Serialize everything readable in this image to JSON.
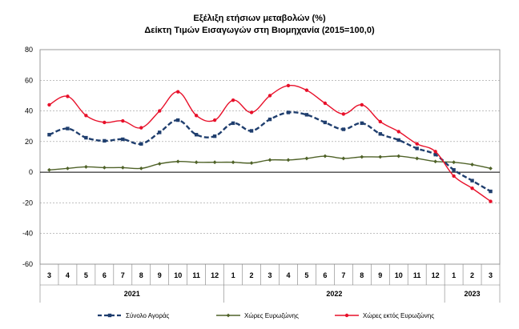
{
  "chart_data": {
    "type": "line",
    "title": "Εξέλιξη ετήσιων μεταβολών (%)",
    "subtitle": "Δείκτη Τιμών Εισαγωγών στη Βιομηχανία (2015=100,0)",
    "categories": [
      "3",
      "4",
      "5",
      "6",
      "7",
      "8",
      "9",
      "10",
      "11",
      "12",
      "1",
      "2",
      "3",
      "4",
      "5",
      "6",
      "7",
      "8",
      "9",
      "10",
      "11",
      "12",
      "1",
      "2",
      "3"
    ],
    "year_groups": [
      {
        "label": "2021",
        "start": 0,
        "end": 9
      },
      {
        "label": "2022",
        "start": 10,
        "end": 21
      },
      {
        "label": "2023",
        "start": 22,
        "end": 24
      }
    ],
    "ylim": [
      -60,
      80
    ],
    "yticks": [
      80,
      60,
      40,
      20,
      0,
      -20,
      -40,
      -60
    ],
    "grid": true,
    "legend_position": "bottom",
    "series": [
      {
        "name": "Σύνολο Αγοράς",
        "color": "#1F3E6E",
        "style": "dashed",
        "marker": "square",
        "values": [
          24.5,
          28.5,
          22.5,
          20.5,
          21.5,
          18.5,
          26,
          34,
          24.5,
          23.5,
          32,
          27,
          34.5,
          39,
          37.5,
          32.5,
          28,
          32,
          25,
          21,
          15.5,
          11.5,
          1.5,
          -5.5,
          -12.5
        ]
      },
      {
        "name": "Χώρες Ευρωζώνης",
        "color": "#4F6228",
        "style": "solid",
        "marker": "diamond",
        "values": [
          1.5,
          2.5,
          3.5,
          3,
          3,
          2.5,
          5.5,
          7,
          6.5,
          6.5,
          6.5,
          6,
          8,
          8,
          9,
          10.5,
          9,
          10,
          10,
          10.5,
          9,
          7,
          6.5,
          5,
          2.5
        ]
      },
      {
        "name": "Χώρες εκτός Ευρωζώνης",
        "color": "#E8102A",
        "style": "solid",
        "marker": "circle",
        "values": [
          44,
          49.5,
          37,
          32.5,
          33.5,
          29,
          40,
          52.5,
          37,
          34,
          47,
          39,
          50,
          56.5,
          53.5,
          45,
          38,
          44,
          33,
          26.5,
          18.5,
          13.5,
          -2.5,
          -10.5,
          -19
        ]
      }
    ]
  }
}
